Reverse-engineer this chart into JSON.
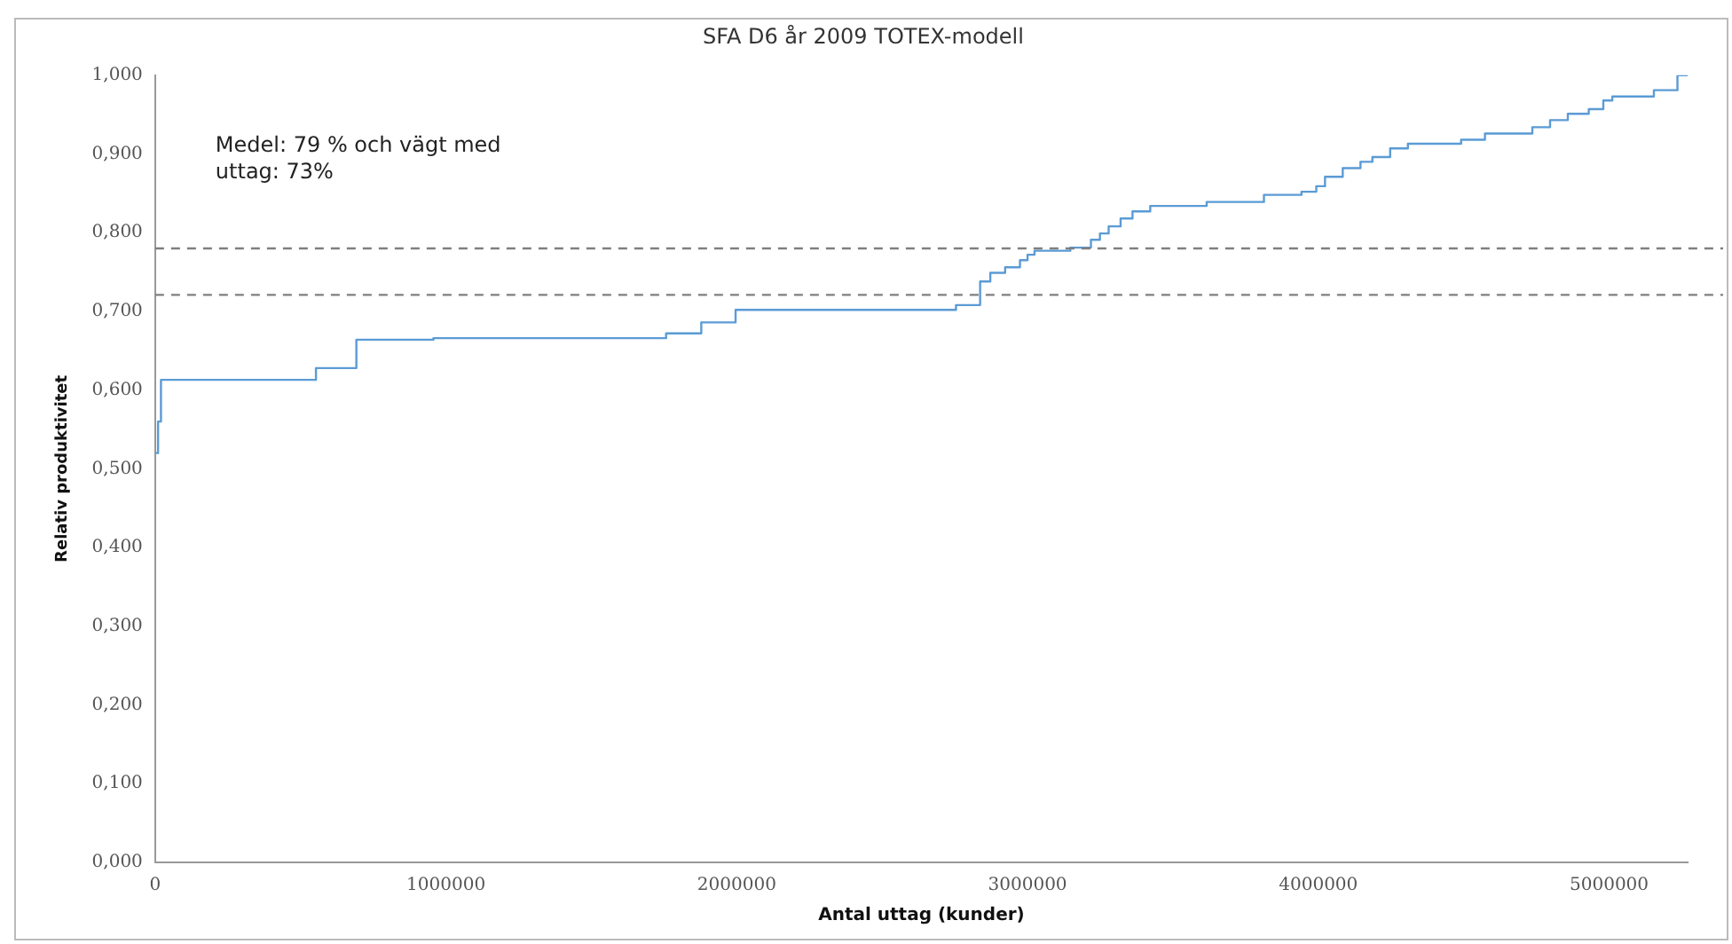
{
  "chart_data": {
    "type": "step",
    "title": "SFA D6 år 2009 TOTEX-modell",
    "xlabel": "Antal uttag (kunder)",
    "ylabel": "Relativ produktivitet",
    "annotations": [
      "Medel: 79 % och vägt med\nuttag: 73%"
    ],
    "x": [
      0,
      10000,
      20000,
      553000,
      692000,
      957000,
      1757000,
      1878000,
      1996000,
      2754000,
      2837000,
      2872000,
      2923000,
      2974000,
      3000000,
      3024000,
      3147000,
      3218000,
      3249000,
      3279000,
      3320000,
      3361000,
      3422000,
      3616000,
      3813000,
      3942000,
      3993000,
      4023000,
      4084000,
      4145000,
      4186000,
      4247000,
      4308000,
      4491000,
      4573000,
      4736000,
      4797000,
      4858000,
      4930000,
      4980000,
      5011000,
      5154000,
      5235000,
      5270000
    ],
    "series": [
      {
        "color": "#5b9bd5",
        "values": [
          0.52,
          0.56,
          0.613,
          0.628,
          0.664,
          0.666,
          0.672,
          0.686,
          0.702,
          0.708,
          0.738,
          0.749,
          0.756,
          0.765,
          0.772,
          0.777,
          0.781,
          0.791,
          0.799,
          0.808,
          0.818,
          0.827,
          0.834,
          0.839,
          0.848,
          0.852,
          0.859,
          0.871,
          0.882,
          0.89,
          0.896,
          0.907,
          0.913,
          0.918,
          0.926,
          0.934,
          0.943,
          0.951,
          0.957,
          0.968,
          0.973,
          0.981,
          1.0,
          1.0
        ]
      }
    ],
    "xlim": [
      0,
      5270000
    ],
    "xticks": [
      0,
      1000000,
      2000000,
      3000000,
      4000000,
      5000000
    ],
    "ylim": [
      0,
      1
    ],
    "yticks": [
      {
        "value": 0,
        "label": "0,000"
      },
      {
        "value": 0.1,
        "label": "0,100"
      },
      {
        "value": 0.2,
        "label": "0,200"
      },
      {
        "value": 0.3,
        "label": "0,300"
      },
      {
        "value": 0.4,
        "label": "0,400"
      },
      {
        "value": 0.5,
        "label": "0,500"
      },
      {
        "value": 0.6,
        "label": "0,600"
      },
      {
        "value": 0.7,
        "label": "0,700"
      },
      {
        "value": 0.8,
        "label": "0,800"
      },
      {
        "value": 0.9,
        "label": "0,900"
      },
      {
        "value": 1,
        "label": "1,000"
      }
    ],
    "ref_lines": [
      {
        "axis": "y",
        "value": 0.78,
        "color": "#7f7f7f",
        "line_style": "dashed"
      },
      {
        "axis": "y",
        "value": 0.721,
        "color": "#7f7f7f",
        "line_style": "dashed"
      }
    ],
    "grid": false,
    "legend": false
  }
}
